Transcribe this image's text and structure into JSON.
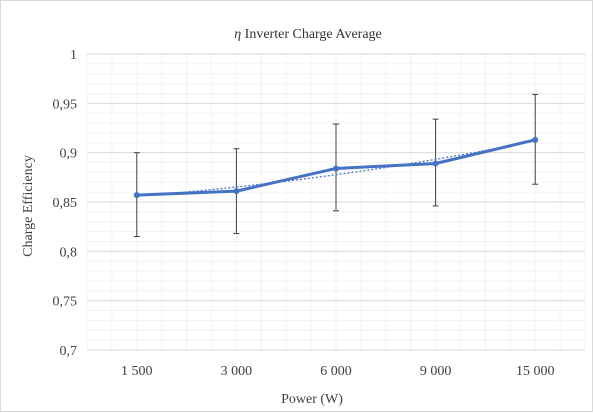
{
  "chart_data": {
    "type": "line",
    "title": "η Inverter Charge Average",
    "title_symbol": "η",
    "title_rest": " Inverter Charge Average",
    "xlabel": "Power (W)",
    "ylabel": "Charge Efficiency",
    "categories": [
      "1 500",
      "3 000",
      "6 000",
      "9 000",
      "15 000"
    ],
    "series": [
      {
        "values": [
          0.857,
          0.861,
          0.884,
          0.889,
          0.913
        ],
        "error_low": [
          0.815,
          0.818,
          0.841,
          0.846,
          0.868
        ],
        "error_high": [
          0.9,
          0.904,
          0.929,
          0.934,
          0.959
        ],
        "color": "#4472c4"
      }
    ],
    "trendline": {
      "style": "dotted",
      "color": "#4472c4"
    },
    "ylim": [
      0.7,
      1.0
    ],
    "yticks": [
      0.7,
      0.75,
      0.8,
      0.85,
      0.9,
      0.95,
      1.0
    ],
    "ytick_labels": [
      "0,7",
      "0,75",
      "0,8",
      "0,85",
      "0,9",
      "0,95",
      "1"
    ],
    "grid": true,
    "grid_color": "#d9d9d9",
    "minor_grid_color": "#f2f2f2",
    "errorbar_color": "#404040"
  }
}
